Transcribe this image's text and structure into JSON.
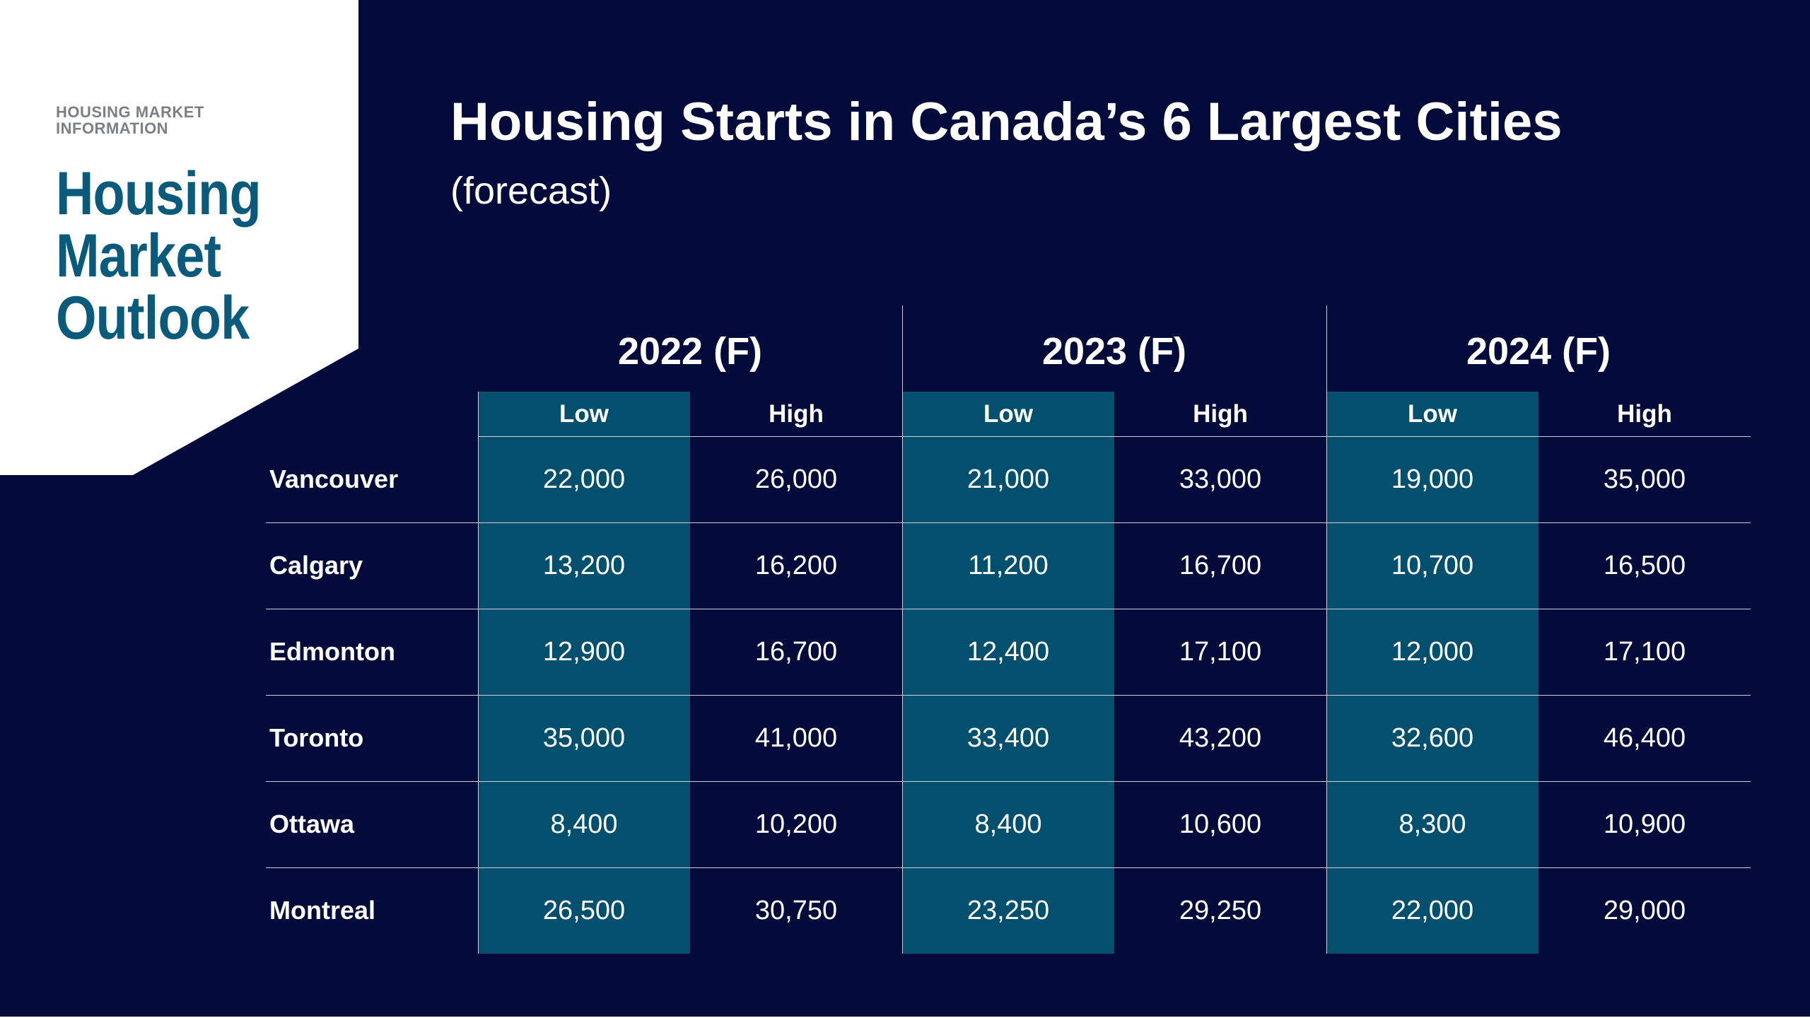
{
  "brand": {
    "kicker": "HOUSING MARKET INFORMATION",
    "title_lines": [
      "Housing",
      "Market",
      "Outlook"
    ]
  },
  "colors": {
    "background": "#020b3a",
    "brand_blue": "#0a5a7c",
    "low_column_fill": "#034f6e",
    "text": "#ffffff",
    "divider": "#c9cfe0"
  },
  "chart_data": {
    "type": "table",
    "title": "Housing Starts in Canada’s 6 Largest Cities",
    "subtitle": "(forecast)",
    "years": [
      "2022 (F)",
      "2023 (F)",
      "2024 (F)"
    ],
    "subcolumns": [
      "Low",
      "High"
    ],
    "rows": [
      {
        "city": "Vancouver",
        "values": [
          "22,000",
          "26,000",
          "21,000",
          "33,000",
          "19,000",
          "35,000"
        ]
      },
      {
        "city": "Calgary",
        "values": [
          "13,200",
          "16,200",
          "11,200",
          "16,700",
          "10,700",
          "16,500"
        ]
      },
      {
        "city": "Edmonton",
        "values": [
          "12,900",
          "16,700",
          "12,400",
          "17,100",
          "12,000",
          "17,100"
        ]
      },
      {
        "city": "Toronto",
        "values": [
          "35,000",
          "41,000",
          "33,400",
          "43,200",
          "32,600",
          "46,400"
        ]
      },
      {
        "city": "Ottawa",
        "values": [
          "8,400",
          "10,200",
          "8,400",
          "10,600",
          "8,300",
          "10,900"
        ]
      },
      {
        "city": "Montreal",
        "values": [
          "26,500",
          "30,750",
          "23,250",
          "29,250",
          "22,000",
          "29,000"
        ]
      }
    ]
  }
}
